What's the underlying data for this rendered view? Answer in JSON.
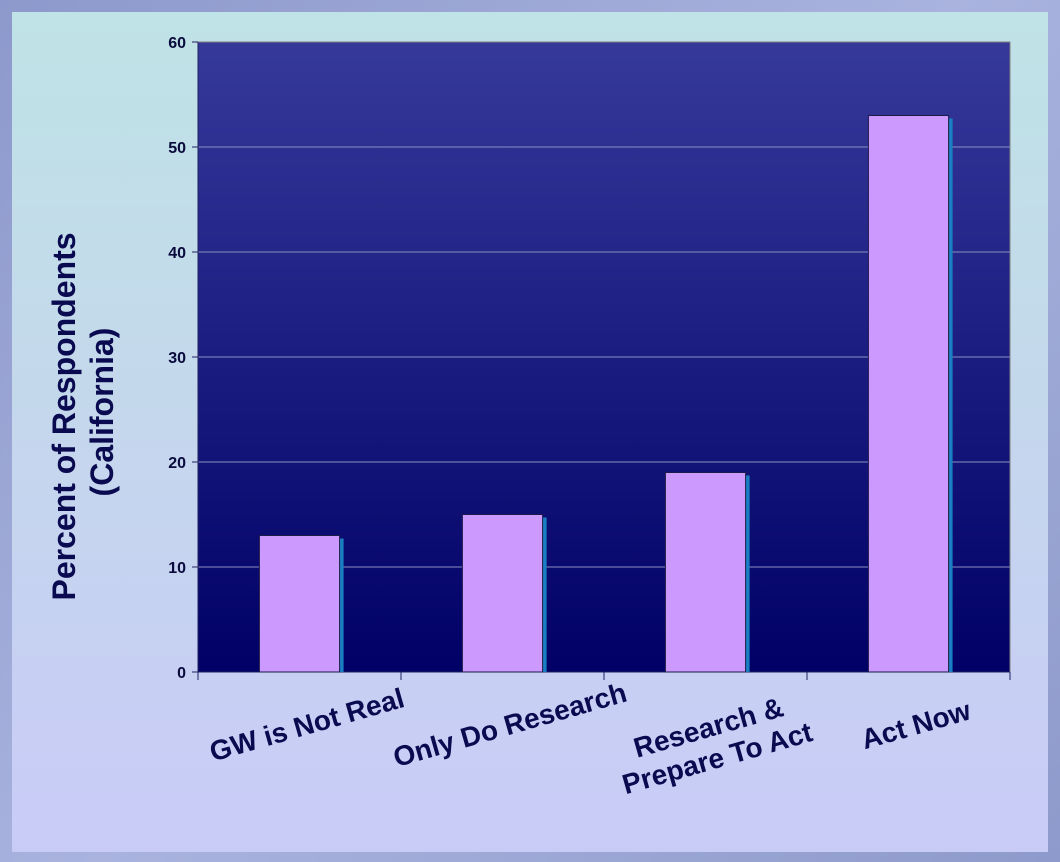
{
  "chart_data": {
    "type": "bar",
    "categories": [
      [
        "GW is Not Real"
      ],
      [
        "Only Do Research"
      ],
      [
        "Research &",
        "Prepare To Act"
      ],
      [
        "Act Now"
      ]
    ],
    "values": [
      13,
      15,
      19,
      53
    ],
    "ylabel": [
      "Percent of Respondents",
      "(California)"
    ],
    "xlabel": "",
    "title": "",
    "ylim": [
      0,
      60
    ],
    "yticks": [
      0,
      10,
      20,
      30,
      40,
      50,
      60
    ],
    "grid": true,
    "legend": "none"
  },
  "colors": {
    "bar_fill": "#cc99ff",
    "bar_shadow": "#1a7fc2",
    "plot_top": "#36399a",
    "plot_bottom": "#000066",
    "gridline": "#8a8fc0",
    "axis": "#202060"
  }
}
